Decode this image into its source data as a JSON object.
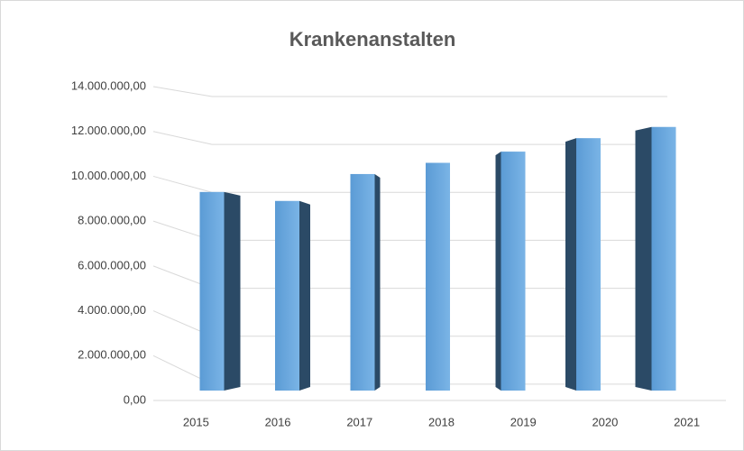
{
  "chart_data": {
    "type": "bar3d",
    "title": "Krankenanstalten",
    "categories": [
      "2015",
      "2016",
      "2017",
      "2018",
      "2019",
      "2020",
      "2021"
    ],
    "values": [
      9300000,
      8900000,
      10100000,
      10600000,
      11100000,
      11700000,
      12200000
    ],
    "color": "#5b9bd5",
    "side_color": "#2b4a66",
    "ylim": [
      0,
      14000000
    ],
    "yticks": [
      {
        "value": 0,
        "label": "0,00"
      },
      {
        "value": 2000000,
        "label": "2.000.000,00"
      },
      {
        "value": 4000000,
        "label": "4.000.000,00"
      },
      {
        "value": 6000000,
        "label": "6.000.000,00"
      },
      {
        "value": 8000000,
        "label": "8.000.000,00"
      },
      {
        "value": 10000000,
        "label": "10.000.000,00"
      },
      {
        "value": 12000000,
        "label": "12.000.000,00"
      },
      {
        "value": 14000000,
        "label": "14.000.000,00"
      }
    ],
    "grid": true
  }
}
